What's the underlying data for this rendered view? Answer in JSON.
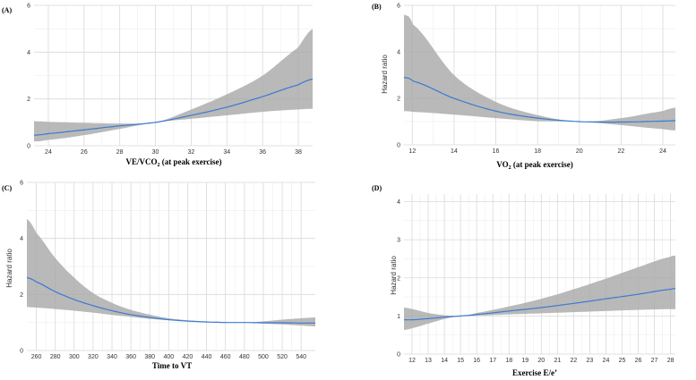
{
  "chart_data": [
    {
      "id": "A",
      "type": "line",
      "panel_label": "(A)",
      "xlabel": "VE/VCO",
      "xlabel_sub": "2",
      "xlabel_rest": " (at peak exercise)",
      "ylabel": "",
      "xlim": [
        23.2,
        38.8
      ],
      "ylim": [
        0,
        6
      ],
      "xticks": [
        24,
        26,
        28,
        30,
        32,
        34,
        36,
        38
      ],
      "yticks": [
        0,
        2,
        4,
        6
      ],
      "x": [
        23.2,
        24,
        26,
        28,
        30,
        32,
        34,
        36,
        38,
        38.8
      ],
      "hr": [
        0.45,
        0.52,
        0.68,
        0.85,
        1.0,
        1.3,
        1.65,
        2.1,
        2.6,
        2.85
      ],
      "lower": [
        0.18,
        0.25,
        0.45,
        0.72,
        1.0,
        1.15,
        1.3,
        1.45,
        1.55,
        1.58
      ],
      "upper": [
        1.05,
        1.02,
        0.98,
        0.95,
        1.0,
        1.55,
        2.2,
        3.0,
        4.2,
        5.0
      ]
    },
    {
      "id": "B",
      "type": "line",
      "panel_label": "(B)",
      "xlabel": "VO",
      "xlabel_sub": "2",
      "xlabel_rest": " (at peak exercise)",
      "ylabel": "Hazard ratio",
      "xlim": [
        11.6,
        24.6
      ],
      "ylim": [
        0,
        6
      ],
      "xticks": [
        12,
        14,
        16,
        18,
        20,
        22,
        24
      ],
      "yticks": [
        0,
        2,
        4,
        6
      ],
      "x": [
        11.6,
        12,
        14,
        16,
        18,
        20,
        22,
        24,
        24.6
      ],
      "hr": [
        2.9,
        2.75,
        2.0,
        1.45,
        1.15,
        1.0,
        0.98,
        1.02,
        1.04
      ],
      "lower": [
        1.45,
        1.42,
        1.3,
        1.15,
        1.02,
        1.0,
        0.85,
        0.68,
        0.62
      ],
      "upper": [
        5.6,
        5.2,
        3.0,
        1.85,
        1.28,
        1.0,
        1.15,
        1.45,
        1.6
      ]
    },
    {
      "id": "C",
      "type": "line",
      "panel_label": "(C)",
      "xlabel": "Time to VT",
      "xlabel_sub": "",
      "xlabel_rest": "",
      "ylabel": "Hazard ratio",
      "xlim": [
        250,
        555
      ],
      "ylim": [
        0,
        6
      ],
      "xticks": [
        260,
        280,
        300,
        320,
        340,
        360,
        380,
        400,
        420,
        440,
        460,
        480,
        500,
        520,
        540
      ],
      "yticks": [
        0,
        2,
        4,
        6
      ],
      "x": [
        250,
        260,
        280,
        300,
        320,
        340,
        360,
        380,
        400,
        420,
        440,
        460,
        480,
        500,
        520,
        540,
        555
      ],
      "hr": [
        2.6,
        2.45,
        2.1,
        1.82,
        1.6,
        1.42,
        1.28,
        1.18,
        1.1,
        1.05,
        1.02,
        1.0,
        1.0,
        0.99,
        0.99,
        0.98,
        0.98
      ],
      "lower": [
        1.55,
        1.53,
        1.48,
        1.42,
        1.35,
        1.27,
        1.2,
        1.13,
        1.08,
        1.04,
        1.01,
        1.0,
        1.0,
        0.96,
        0.93,
        0.89,
        0.86
      ],
      "upper": [
        4.7,
        4.2,
        3.3,
        2.6,
        2.05,
        1.7,
        1.45,
        1.28,
        1.15,
        1.08,
        1.03,
        1.0,
        1.0,
        1.04,
        1.1,
        1.15,
        1.18
      ]
    },
    {
      "id": "D",
      "type": "line",
      "panel_label": "(D)",
      "xlabel": "Exercise E/e’",
      "xlabel_sub": "",
      "xlabel_rest": "",
      "ylabel": "Hazard ratio",
      "xlim": [
        11.5,
        28.3
      ],
      "ylim": [
        0,
        4.2
      ],
      "xticks": [
        12,
        13,
        14,
        15,
        16,
        17,
        18,
        19,
        20,
        21,
        22,
        23,
        24,
        25,
        26,
        27,
        28
      ],
      "yticks": [
        0,
        1,
        2,
        3,
        4
      ],
      "x": [
        11.5,
        12,
        13,
        14,
        15,
        16,
        18,
        20,
        22,
        24,
        26,
        28,
        28.3
      ],
      "hr": [
        0.9,
        0.9,
        0.93,
        0.97,
        1.0,
        1.04,
        1.13,
        1.22,
        1.33,
        1.45,
        1.57,
        1.7,
        1.72
      ],
      "lower": [
        0.63,
        0.68,
        0.8,
        0.92,
        1.0,
        1.01,
        1.04,
        1.07,
        1.1,
        1.13,
        1.16,
        1.18,
        1.18
      ],
      "upper": [
        1.22,
        1.18,
        1.08,
        1.02,
        1.0,
        1.08,
        1.25,
        1.45,
        1.7,
        1.98,
        2.28,
        2.55,
        2.58
      ]
    }
  ]
}
